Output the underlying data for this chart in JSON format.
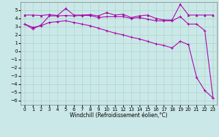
{
  "bg_color": "#cbe8e8",
  "grid_color": "#aad4c8",
  "line_color": "#aa00aa",
  "xlabel": "Windchill (Refroidissement éolien,°C)",
  "xlim": [
    -0.5,
    23.5
  ],
  "ylim": [
    -6.5,
    6.0
  ],
  "yticks": [
    -6,
    -5,
    -4,
    -3,
    -2,
    -1,
    0,
    1,
    2,
    3,
    4,
    5
  ],
  "xticks": [
    0,
    1,
    2,
    3,
    4,
    5,
    6,
    7,
    8,
    9,
    10,
    11,
    12,
    13,
    14,
    15,
    16,
    17,
    18,
    19,
    20,
    21,
    22,
    23
  ],
  "series1_x": [
    0,
    1,
    2,
    3,
    4,
    5,
    6,
    7,
    8,
    9,
    10,
    11,
    12,
    13,
    14,
    15,
    16,
    17,
    18,
    19,
    20,
    21,
    22,
    23
  ],
  "series1_y": [
    3.3,
    2.7,
    3.2,
    4.3,
    4.3,
    4.35,
    4.3,
    4.35,
    4.35,
    4.1,
    4.2,
    4.2,
    4.2,
    4.0,
    4.1,
    3.9,
    3.7,
    3.7,
    3.7,
    4.2,
    3.3,
    3.3,
    2.5,
    -5.7
  ],
  "series2_x": [
    0,
    1,
    2,
    3,
    4,
    5,
    6,
    7,
    8,
    9,
    10,
    11,
    12,
    13,
    14,
    15,
    16,
    17,
    18,
    19,
    20,
    21,
    22,
    23
  ],
  "series2_y": [
    4.4,
    4.4,
    4.35,
    4.45,
    4.35,
    5.2,
    4.4,
    4.4,
    4.45,
    4.3,
    4.7,
    4.4,
    4.5,
    4.1,
    4.3,
    4.4,
    4.0,
    3.8,
    3.8,
    5.7,
    4.4,
    4.4,
    4.4,
    4.4
  ],
  "series3_x": [
    0,
    1,
    2,
    3,
    4,
    5,
    6,
    7,
    8,
    9,
    10,
    11,
    12,
    13,
    14,
    15,
    16,
    17,
    18,
    19,
    20,
    21,
    22,
    23
  ],
  "series3_y": [
    3.3,
    2.9,
    3.1,
    3.5,
    3.6,
    3.7,
    3.5,
    3.3,
    3.1,
    2.8,
    2.5,
    2.2,
    2.0,
    1.7,
    1.5,
    1.2,
    0.9,
    0.7,
    0.4,
    1.2,
    0.8,
    -3.2,
    -4.8,
    -5.7
  ],
  "marker_size": 2.5,
  "line_width": 0.8,
  "tick_fontsize": 5.0,
  "xlabel_fontsize": 5.5
}
